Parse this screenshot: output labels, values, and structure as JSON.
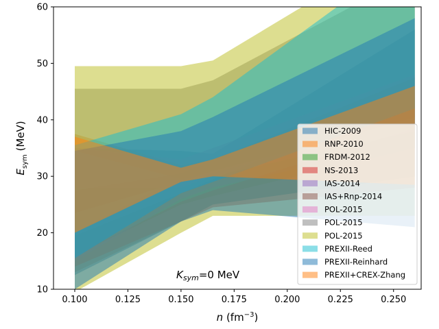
{
  "chart_data": {
    "type": "area",
    "title": "",
    "xlabel_main": "n",
    "xlabel_unit": " (fm",
    "xlabel_exp": "−3",
    "xlabel_close": ")",
    "ylabel_main": "E",
    "ylabel_sub": "sym",
    "ylabel_unit": " (MeV)",
    "xlim": [
      0.09,
      0.263
    ],
    "ylim": [
      10,
      60
    ],
    "xticks": [
      0.1,
      0.125,
      0.15,
      0.175,
      0.2,
      0.225,
      0.25
    ],
    "xtick_labels": [
      "0.100",
      "0.125",
      "0.150",
      "0.175",
      "0.200",
      "0.225",
      "0.250"
    ],
    "yticks": [
      10,
      20,
      30,
      40,
      50,
      60
    ],
    "ytick_labels": [
      "10",
      "20",
      "30",
      "40",
      "50",
      "60"
    ],
    "legend_position": "center-right",
    "annotation": {
      "main": "K",
      "sub": "sym",
      "rest": "=0 MeV"
    },
    "series": [
      {
        "name": "HIC-2009",
        "color": "#1f77b4",
        "upper": [
          [
            0.1,
            35.0
          ],
          [
            0.15,
            34.5
          ],
          [
            0.165,
            34.0
          ],
          [
            0.26,
            56.0
          ]
        ],
        "lower": [
          [
            0.1,
            12.5
          ],
          [
            0.15,
            22.0
          ],
          [
            0.165,
            25.0
          ],
          [
            0.26,
            30.0
          ]
        ]
      },
      {
        "name": "RNP-2010",
        "color": "#ff7f0e",
        "upper": [
          [
            0.1,
            37.5
          ],
          [
            0.15,
            32.0
          ],
          [
            0.165,
            33.0
          ],
          [
            0.26,
            46.0
          ]
        ],
        "lower": [
          [
            0.1,
            34.5
          ],
          [
            0.15,
            29.5
          ],
          [
            0.165,
            30.5
          ],
          [
            0.26,
            40.5
          ]
        ]
      },
      {
        "name": "FRDM-2012",
        "color": "#2ca02c",
        "upper": [
          [
            0.1,
            19.5
          ],
          [
            0.15,
            27.0
          ],
          [
            0.165,
            29.5
          ],
          [
            0.26,
            44.0
          ]
        ],
        "lower": [
          [
            0.1,
            16.0
          ],
          [
            0.15,
            25.0
          ],
          [
            0.165,
            26.5
          ],
          [
            0.26,
            35.0
          ]
        ]
      },
      {
        "name": "NS-2013",
        "color": "#d62728",
        "upper": [
          [
            0.1,
            16.0
          ],
          [
            0.15,
            25.5
          ],
          [
            0.165,
            27.5
          ],
          [
            0.26,
            38.5
          ]
        ],
        "lower": [
          [
            0.1,
            14.0
          ],
          [
            0.15,
            22.0
          ],
          [
            0.165,
            24.5
          ],
          [
            0.26,
            28.0
          ]
        ]
      },
      {
        "name": "IAS-2014",
        "color": "#9467bd",
        "upper": [
          [
            0.1,
            20.0
          ],
          [
            0.15,
            30.0
          ],
          [
            0.165,
            32.0
          ],
          [
            0.26,
            45.0
          ]
        ],
        "lower": [
          [
            0.1,
            15.0
          ],
          [
            0.15,
            26.0
          ],
          [
            0.165,
            28.0
          ],
          [
            0.26,
            36.0
          ]
        ]
      },
      {
        "name": "IAS+Rnp-2014",
        "color": "#8c564b",
        "upper": [
          [
            0.1,
            27.5
          ],
          [
            0.15,
            30.5
          ],
          [
            0.165,
            33.0
          ],
          [
            0.26,
            47.5
          ]
        ],
        "lower": [
          [
            0.1,
            23.5
          ],
          [
            0.15,
            29.0
          ],
          [
            0.165,
            31.0
          ],
          [
            0.26,
            40.0
          ]
        ]
      },
      {
        "name": "POL-2015",
        "color": "#e377c2",
        "upper": [
          [
            0.1,
            35.0
          ],
          [
            0.15,
            33.0
          ],
          [
            0.165,
            35.0
          ],
          [
            0.26,
            48.0
          ]
        ],
        "lower": [
          [
            0.1,
            28.0
          ],
          [
            0.15,
            28.0
          ],
          [
            0.165,
            30.0
          ],
          [
            0.26,
            38.0
          ]
        ]
      },
      {
        "name": "POL-2015",
        "color": "#7f7f7f",
        "upper": [
          [
            0.1,
            45.5
          ],
          [
            0.15,
            45.5
          ],
          [
            0.165,
            47.0
          ],
          [
            0.26,
            66.0
          ]
        ],
        "lower": [
          [
            0.1,
            13.0
          ],
          [
            0.15,
            22.0
          ],
          [
            0.165,
            25.0
          ],
          [
            0.26,
            30.0
          ]
        ]
      },
      {
        "name": "POL-2015",
        "color": "#bcbd22",
        "upper": [
          [
            0.1,
            49.5
          ],
          [
            0.15,
            49.5
          ],
          [
            0.165,
            50.5
          ],
          [
            0.26,
            72.0
          ]
        ],
        "lower": [
          [
            0.1,
            9.5
          ],
          [
            0.15,
            20.0
          ],
          [
            0.165,
            23.0
          ],
          [
            0.26,
            23.0
          ]
        ]
      },
      {
        "name": "PREXII-Reed",
        "color": "#17becf",
        "upper": [
          [
            0.1,
            35.5
          ],
          [
            0.15,
            41.0
          ],
          [
            0.165,
            44.0
          ],
          [
            0.26,
            70.0
          ]
        ],
        "lower": [
          [
            0.1,
            15.5
          ],
          [
            0.15,
            27.0
          ],
          [
            0.165,
            29.0
          ],
          [
            0.26,
            42.0
          ]
        ]
      },
      {
        "name": "PREXII-Reinhard",
        "color": "#1f77b4",
        "upper": [
          [
            0.1,
            34.5
          ],
          [
            0.15,
            38.0
          ],
          [
            0.165,
            40.5
          ],
          [
            0.26,
            58.0
          ]
        ],
        "lower": [
          [
            0.1,
            10.0
          ],
          [
            0.15,
            22.0
          ],
          [
            0.165,
            24.0
          ],
          [
            0.26,
            21.0
          ]
        ]
      },
      {
        "name": "PREXII+CREX-Zhang",
        "color": "#ff7f0e",
        "upper": [
          [
            0.1,
            37.0
          ],
          [
            0.15,
            31.5
          ],
          [
            0.165,
            33.0
          ],
          [
            0.26,
            46.0
          ]
        ],
        "lower": [
          [
            0.1,
            20.0
          ],
          [
            0.15,
            29.0
          ],
          [
            0.165,
            30.0
          ],
          [
            0.26,
            28.5
          ]
        ]
      }
    ]
  }
}
